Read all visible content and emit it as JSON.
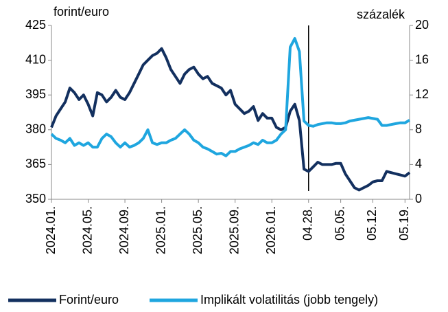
{
  "chart_data": {
    "type": "line",
    "y_label": "forint/euro",
    "y2_label": "százalék",
    "categories": [
      "2024.01.",
      null,
      null,
      null,
      null,
      null,
      null,
      null,
      "2024.05.",
      null,
      null,
      null,
      null,
      null,
      null,
      null,
      "2024.09.",
      null,
      null,
      null,
      null,
      null,
      null,
      null,
      "2025.01.",
      null,
      null,
      null,
      null,
      null,
      null,
      null,
      "2025.05.",
      null,
      null,
      null,
      null,
      null,
      null,
      null,
      "2025.09.",
      null,
      null,
      null,
      null,
      null,
      null,
      null,
      "2026.01.",
      null,
      null,
      null,
      null,
      null,
      null,
      null,
      "04.28.",
      null,
      null,
      null,
      null,
      null,
      null,
      "05.05.",
      null,
      null,
      null,
      null,
      null,
      null,
      "05.12.",
      null,
      null,
      null,
      null,
      null,
      null,
      "05.19.",
      null
    ],
    "series": [
      {
        "name": "Forint/euro",
        "color": "#13305f",
        "axis": "y",
        "values": [
          381,
          386,
          389,
          392,
          398,
          396,
          393,
          395,
          391,
          386,
          396,
          395,
          392,
          394,
          397,
          394,
          393,
          396,
          400,
          404,
          408,
          410,
          412,
          413,
          415,
          411,
          406,
          403,
          400,
          404,
          406,
          407,
          404,
          402,
          403,
          400,
          399,
          398,
          395,
          397,
          391,
          389,
          387,
          388,
          390,
          384,
          387,
          385,
          385,
          381,
          380,
          381,
          388,
          391,
          384,
          363,
          362,
          364,
          366,
          365,
          365,
          365,
          365.5,
          365.5,
          361,
          358,
          355,
          354,
          355,
          356,
          357.5,
          358,
          358,
          362,
          361.5,
          361,
          360.5,
          360,
          361.5
        ]
      },
      {
        "name": "Implikált volatilitás (jobb tengely)",
        "color": "#1fa6df",
        "axis": "y2",
        "values": [
          7.5,
          7,
          6.8,
          6.5,
          7,
          6.2,
          6.5,
          6.2,
          6.5,
          6,
          6,
          7,
          7.5,
          7.2,
          6.5,
          6,
          6.5,
          6,
          6.2,
          6.5,
          7,
          8,
          6.5,
          6.3,
          6.5,
          6.5,
          6.8,
          7,
          7.5,
          8,
          7.5,
          6.8,
          6.5,
          6,
          5.8,
          5.5,
          5.2,
          5.3,
          5,
          5.5,
          5.5,
          5.8,
          6,
          6.2,
          6.5,
          6.3,
          6.8,
          6.5,
          6.5,
          6.8,
          7.5,
          8,
          17.5,
          18.5,
          17,
          9,
          8.5,
          8.4,
          8.6,
          8.7,
          8.8,
          8.8,
          8.7,
          8.7,
          8.8,
          9,
          9.1,
          9.2,
          9.3,
          9.4,
          9.3,
          9.2,
          8.5,
          8.5,
          8.6,
          8.7,
          8.8,
          8.8,
          9.1
        ]
      }
    ],
    "ylim": [
      350,
      425
    ],
    "yticks": [
      350,
      365,
      380,
      395,
      410,
      425
    ],
    "y2lim": [
      0,
      20
    ],
    "y2ticks": [
      0,
      4,
      8,
      12,
      16,
      20
    ],
    "grid": false,
    "legend": "bottom"
  }
}
